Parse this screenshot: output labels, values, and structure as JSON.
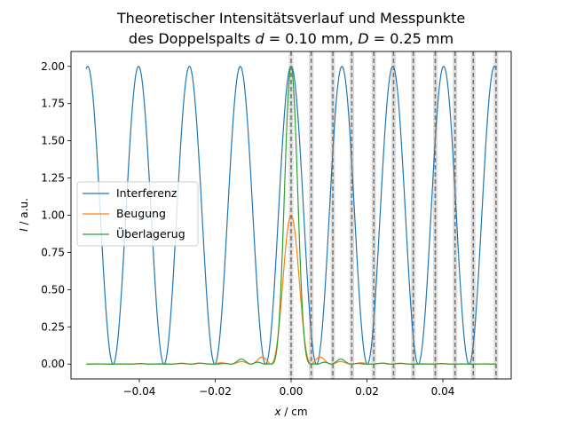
{
  "chart_data": {
    "type": "line",
    "title_line1": "Theoretischer Intensitätsverlauf und Messpunkte",
    "title_line2": "des Doppelspalts d = 0.10 mm, D = 0.25 mm",
    "xlabel": "x / cm",
    "ylabel": "I / a.u.",
    "xlim": [
      -0.058,
      0.058
    ],
    "ylim": [
      -0.1,
      2.1
    ],
    "xticks": [
      -0.04,
      -0.02,
      0.0,
      0.02,
      0.04
    ],
    "xtick_labels": [
      "−0.04",
      "−0.02",
      "0.00",
      "0.02",
      "0.04"
    ],
    "yticks": [
      0.0,
      0.25,
      0.5,
      0.75,
      1.0,
      1.25,
      1.5,
      1.75,
      2.0
    ],
    "ytick_labels": [
      "0.00",
      "0.25",
      "0.50",
      "0.75",
      "1.00",
      "1.25",
      "1.50",
      "1.75",
      "2.00"
    ],
    "grid": false,
    "legend_placement": "center-left",
    "interference_period": 0.0134,
    "diffraction_first_zero": 0.0053,
    "x_range": [
      -0.054,
      0.054
    ],
    "measurement_points_x": [
      0.0,
      0.0053,
      0.011,
      0.016,
      0.0218,
      0.027,
      0.0322,
      0.038,
      0.0432,
      0.048,
      0.054
    ],
    "measurement_band_halfwidth": 0.0006,
    "series": [
      {
        "name": "Interferenz",
        "color": "#1f77b4",
        "formula": "2*cos^2(pi*x/period)"
      },
      {
        "name": "Beugung",
        "color": "#ff7f0e",
        "formula": "sinc^2(x/first_zero)"
      },
      {
        "name": "Überlagerug",
        "color": "#2ca02c",
        "formula": "Interferenz*Beugung"
      }
    ]
  }
}
